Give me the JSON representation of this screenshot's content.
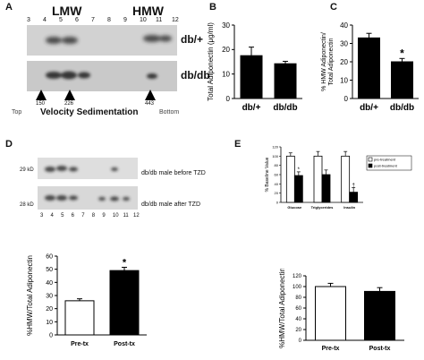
{
  "panels": {
    "A": {
      "letter": "A",
      "lmw": "LMW",
      "hmw": "HMW",
      "lanes": [
        "3",
        "4",
        "5",
        "6",
        "7",
        "8",
        "9",
        "10",
        "11",
        "12"
      ],
      "row_labels": [
        "db/+",
        "db/db"
      ],
      "markers": [
        "150",
        "226",
        "443"
      ],
      "top": "Top",
      "bottom": "Bottom",
      "axis_title": "Velocity Sedimentation"
    },
    "B": {
      "letter": "B"
    },
    "C": {
      "letter": "C"
    },
    "D": {
      "letter": "D",
      "kd": [
        "29 kD",
        "28 kD"
      ],
      "lanes": [
        "3",
        "4",
        "5",
        "6",
        "7",
        "8",
        "9",
        "10",
        "11",
        "12"
      ],
      "row_labels": [
        "db/db male before TZD",
        "db/db male after TZD"
      ]
    },
    "E": {
      "letter": "E"
    }
  },
  "chart_data": [
    {
      "id": "B",
      "type": "bar",
      "categories": [
        "db/+",
        "db/db"
      ],
      "values": [
        17.5,
        14.2
      ],
      "errors": [
        3.5,
        1.0
      ],
      "colors": [
        "#000000",
        "#000000"
      ],
      "ylabel": "Total Adiponectin (μg/ml)",
      "ylim": [
        0,
        30
      ],
      "yticks": [
        "0",
        "10",
        "20",
        "30"
      ],
      "annotations": []
    },
    {
      "id": "C",
      "type": "bar",
      "categories": [
        "db/+",
        "db/db"
      ],
      "values": [
        33,
        20
      ],
      "errors": [
        2.5,
        1.8
      ],
      "colors": [
        "#000000",
        "#000000"
      ],
      "ylabel": "% HMW Adiponectin/ Total Adiponectin",
      "ylim": [
        0,
        40
      ],
      "yticks": [
        "0",
        "10",
        "20",
        "30",
        "40"
      ],
      "annotations": [
        "",
        "*"
      ]
    },
    {
      "id": "D-bar",
      "type": "bar",
      "categories": [
        "Pre-tx",
        "Post-tx"
      ],
      "values": [
        26,
        49
      ],
      "errors": [
        1.5,
        2.5
      ],
      "colors": [
        "#ffffff",
        "#000000"
      ],
      "ylabel": "%HMW/Total Adiponectin",
      "ylim": [
        0,
        60
      ],
      "yticks": [
        "0",
        "10",
        "20",
        "30",
        "40",
        "50",
        "60"
      ],
      "annotations": [
        "",
        "*"
      ]
    },
    {
      "id": "E-top",
      "type": "bar",
      "categories": [
        "Glucose",
        "Triglycerides",
        "Insulin"
      ],
      "series": [
        {
          "name": "pre-treatment",
          "values": [
            100,
            100,
            100
          ],
          "errors": [
            7,
            10,
            10
          ],
          "color": "#ffffff"
        },
        {
          "name": "post-treatment",
          "values": [
            58,
            60,
            22
          ],
          "errors": [
            8,
            10,
            10
          ],
          "color": "#000000"
        }
      ],
      "annotations": [
        "*",
        "",
        "†"
      ],
      "ylabel": "% Baseline Value",
      "ylim": [
        0,
        120
      ],
      "yticks": [
        "0",
        "20",
        "40",
        "60",
        "80",
        "100",
        "120"
      ],
      "legend": "right"
    },
    {
      "id": "E-bar",
      "type": "bar",
      "categories": [
        "Pre-tx",
        "Post-tx"
      ],
      "values": [
        100,
        91
      ],
      "errors": [
        6,
        7
      ],
      "colors": [
        "#ffffff",
        "#000000"
      ],
      "ylabel": "%HMW/Total Adiponectin",
      "ylim": [
        0,
        120
      ],
      "yticks": [
        "0",
        "20",
        "40",
        "60",
        "80",
        "100",
        "120"
      ],
      "annotations": []
    }
  ]
}
